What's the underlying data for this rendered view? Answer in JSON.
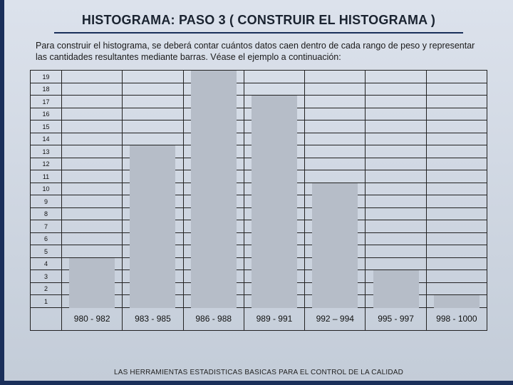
{
  "title": "HISTOGRAMA: PASO 3 ( CONSTRUIR EL HISTOGRAMA )",
  "paragraph": "Para construir el histograma, se deberá contar cuántos datos caen dentro de cada rango de peso y representar las cantidades resultantes mediante barras. Véase el ejemplo a continuación:",
  "footer": "LAS HERRAMIENTAS ESTADISTICAS BASICAS PARA EL CONTROL DE LA CALIDAD",
  "histogram": {
    "type": "histogram",
    "y_max": 19,
    "y_min": 1,
    "y_labels": [
      19,
      18,
      17,
      16,
      15,
      14,
      13,
      12,
      11,
      10,
      9,
      8,
      7,
      6,
      5,
      4,
      3,
      2,
      1
    ],
    "categories": [
      "980 - 982",
      "983 - 985",
      "986 - 988",
      "989 - 991",
      "992 – 994",
      "995 - 997",
      "998 - 1000"
    ],
    "values": [
      4,
      13,
      19,
      17,
      10,
      3,
      1
    ],
    "bar_color": "#b6bdc8",
    "grid_color": "#222222",
    "background": "transparent",
    "ylabel_fontsize": 9,
    "category_fontsize": 12
  },
  "colors": {
    "frame": "#1a2f5a",
    "bg_top": "#dce2ec",
    "bg_bottom": "#c3ccd8"
  }
}
